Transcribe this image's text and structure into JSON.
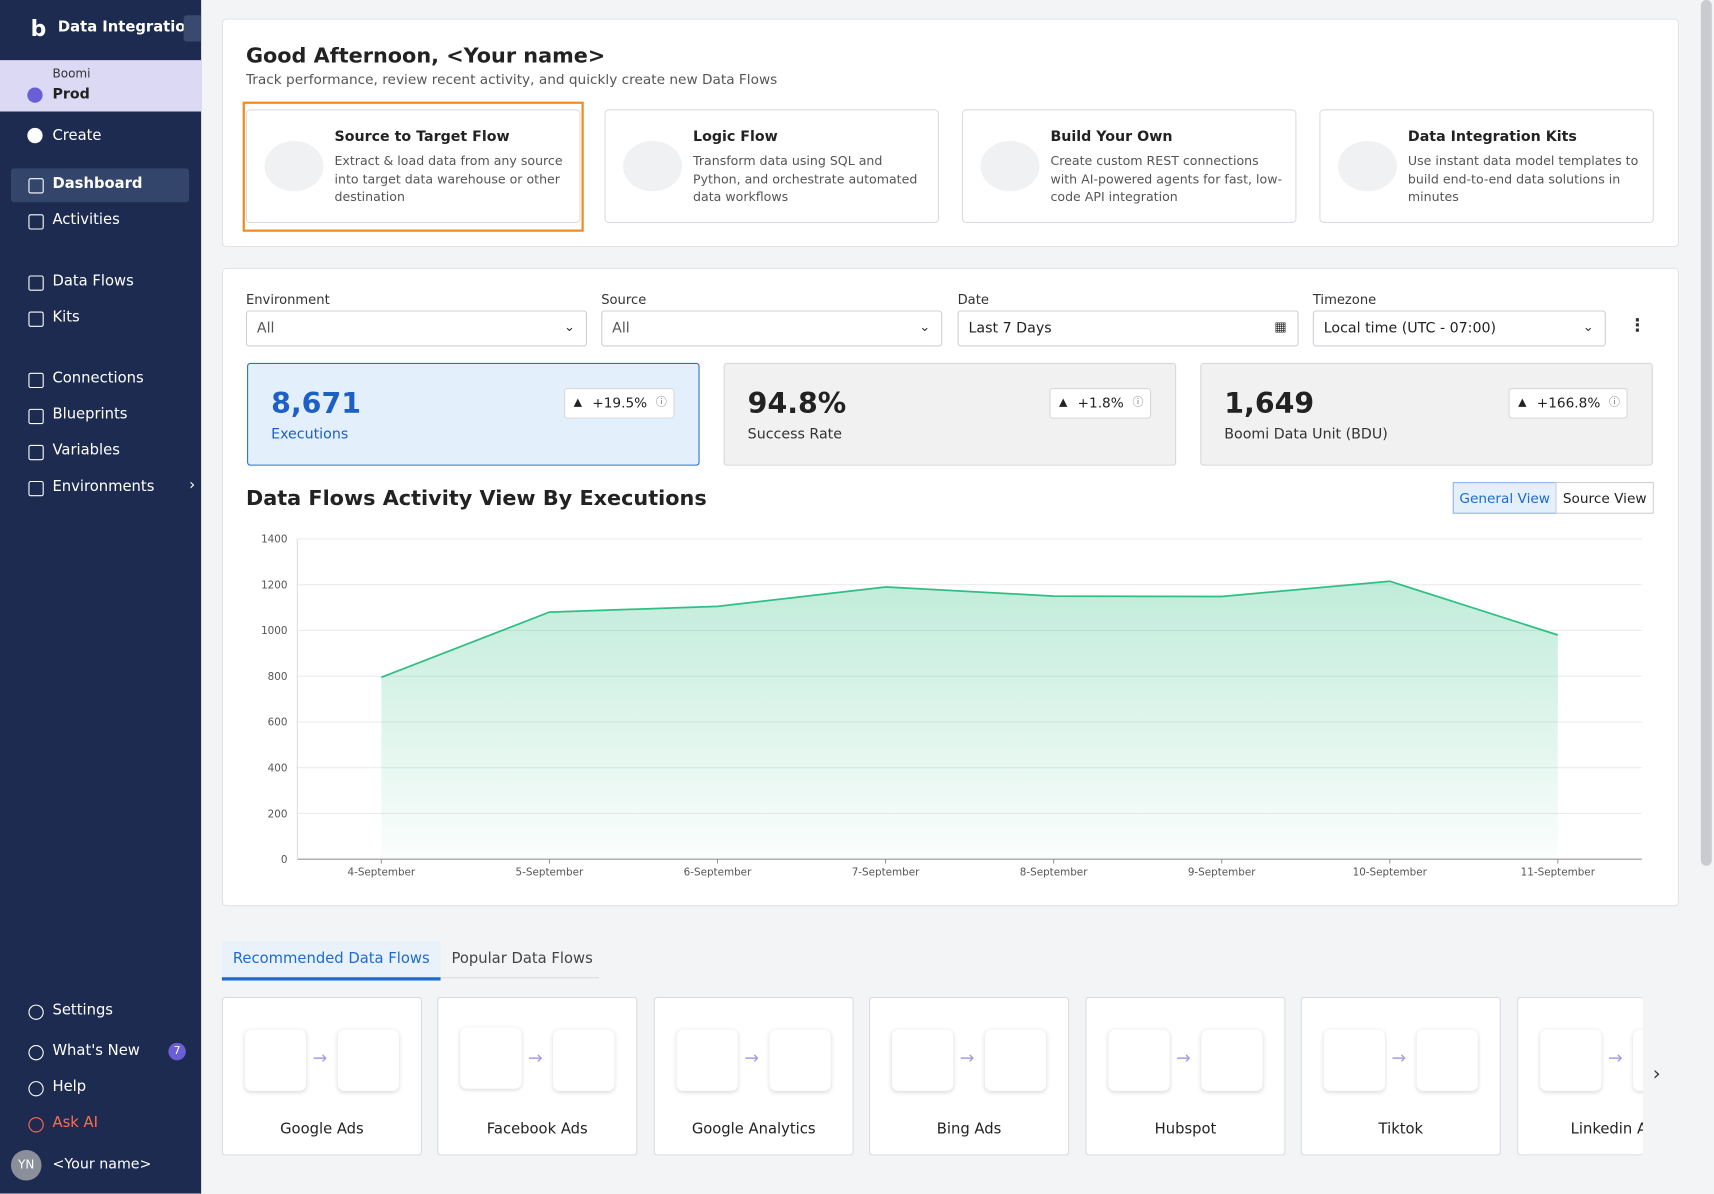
{
  "sidebar": {
    "brand": "Data Integration",
    "account": "Boomi",
    "environment": "Prod",
    "create": "Create",
    "menu": [
      "Dashboard",
      "Activities",
      "Data Flows",
      "Kits",
      "Connections",
      "Blueprints",
      "Variables",
      "Environments"
    ],
    "bottom": [
      "Settings",
      "What's New",
      "Help",
      "Ask AI"
    ],
    "whats_new_badge": "7",
    "user_initials": "YN",
    "user": "<Your name>"
  },
  "header": {
    "title": "Good Afternoon, <Your name>",
    "subtitle": "Track performance, review recent activity, and quickly create new Data Flows"
  },
  "cards": [
    {
      "title": "Source to Target Flow",
      "text": "Extract & load data from any source into target data warehouse or other destination"
    },
    {
      "title": "Logic Flow",
      "text": "Transform data using SQL and Python, and orchestrate automated data workflows"
    },
    {
      "title": "Build Your Own",
      "text": "Create custom REST connections with AI-powered agents for fast, low-code API integration"
    },
    {
      "title": "Data Integration Kits",
      "text": "Use instant data model templates to build end-to-end data solutions in minutes"
    }
  ],
  "filters": [
    {
      "label": "Environment",
      "value": "All"
    },
    {
      "label": "Source",
      "value": "All"
    },
    {
      "label": "Date",
      "value": "Last 7 Days"
    },
    {
      "label": "Timezone",
      "value": "Local time (UTC - 07:00)"
    }
  ],
  "kpis": [
    {
      "value": "8,671",
      "label": "Executions",
      "change": "+19.5%"
    },
    {
      "value": "94.8%",
      "label": "Success Rate",
      "change": "+1.8%"
    },
    {
      "value": "1,649",
      "label": "Boomi Data Unit (BDU)",
      "change": "+166.8%"
    }
  ],
  "view_toggle": [
    "General View",
    "Source View"
  ],
  "chart_data": {
    "type": "area",
    "title": "Data Flows Activity View By Executions",
    "categories": [
      "4-September",
      "5-September",
      "6-September",
      "7-September",
      "8-September",
      "9-September",
      "10-September",
      "11-September"
    ],
    "values": [
      795,
      1080,
      1105,
      1190,
      1150,
      1148,
      1215,
      980
    ],
    "color": "#2fbf84",
    "ylim": [
      0,
      1400
    ],
    "yticks": [
      0,
      200,
      400,
      600,
      800,
      1000,
      1200,
      1400
    ],
    "grid": true
  },
  "tabs": [
    "Recommended Data Flows",
    "Popular Data Flows"
  ],
  "flows": [
    "Google Ads",
    "Facebook Ads",
    "Google Analytics",
    "Bing Ads",
    "Hubspot",
    "Tiktok",
    "Linkedin Ads"
  ]
}
